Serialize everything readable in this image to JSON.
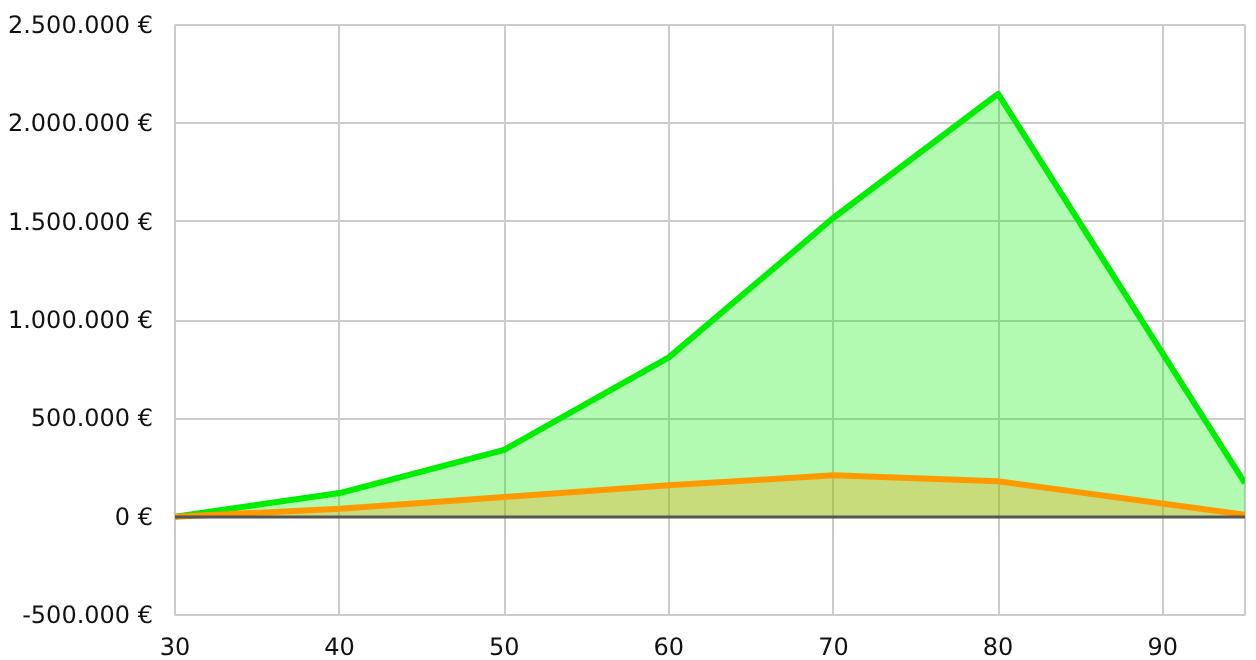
{
  "chart_data": {
    "type": "area",
    "x": [
      30,
      40,
      50,
      60,
      70,
      80,
      95
    ],
    "series": [
      {
        "color": "#00ee00",
        "values": [
          0,
          120000,
          340000,
          810000,
          1520000,
          2150000,
          170000
        ]
      },
      {
        "color": "#ff9900",
        "values": [
          0,
          40000,
          100000,
          160000,
          210000,
          180000,
          10000
        ]
      }
    ],
    "xlim": [
      30,
      95
    ],
    "xticks": [
      30,
      40,
      50,
      60,
      70,
      80,
      90
    ],
    "ylim": [
      -500000,
      2500000
    ],
    "yticks": [
      {
        "value": -500000,
        "label": "-500.000 €"
      },
      {
        "value": 0,
        "label": "0 €"
      },
      {
        "value": 500000,
        "label": "500.000 €"
      },
      {
        "value": 1000000,
        "label": "1.000.000 €"
      },
      {
        "value": 1500000,
        "label": "1.500.000 €"
      },
      {
        "value": 2000000,
        "label": "2.000.000 €"
      },
      {
        "value": 2500000,
        "label": "2.500.000 €"
      }
    ],
    "grid": true
  }
}
